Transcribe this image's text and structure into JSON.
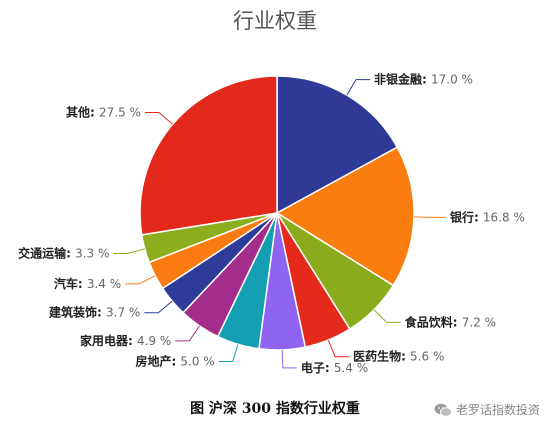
{
  "chart_data": {
    "type": "pie",
    "title": "行业权重",
    "unit": "%",
    "slices": [
      {
        "label": "非银金融",
        "value": 17.0,
        "display": "17.0 %",
        "color": "#2f3a97"
      },
      {
        "label": "银行",
        "value": 16.8,
        "display": "16.8 %",
        "color": "#fa7d10"
      },
      {
        "label": "食品饮料",
        "value": 7.2,
        "display": "7.2 %",
        "color": "#8aac1c"
      },
      {
        "label": "医药生物",
        "value": 5.6,
        "display": "5.6 %",
        "color": "#e5291b"
      },
      {
        "label": "电子",
        "value": 5.4,
        "display": "5.4 %",
        "color": "#8f64f0"
      },
      {
        "label": "房地产",
        "value": 5.0,
        "display": "5.0 %",
        "color": "#139fb1"
      },
      {
        "label": "家用电器",
        "value": 4.9,
        "display": "4.9 %",
        "color": "#a32d8c"
      },
      {
        "label": "建筑装饰",
        "value": 3.7,
        "display": "3.7 %",
        "color": "#2e3b98"
      },
      {
        "label": "汽车",
        "value": 3.4,
        "display": "3.4 %",
        "color": "#fb7b11"
      },
      {
        "label": "交通运输",
        "value": 3.3,
        "display": "3.3 %",
        "color": "#8bad1e"
      },
      {
        "label": "其他",
        "value": 27.5,
        "display": "27.5 %",
        "color": "#e3291c"
      }
    ]
  },
  "caption": "图  沪深 300 指数行业权重",
  "watermark": "老罗话指数投资"
}
